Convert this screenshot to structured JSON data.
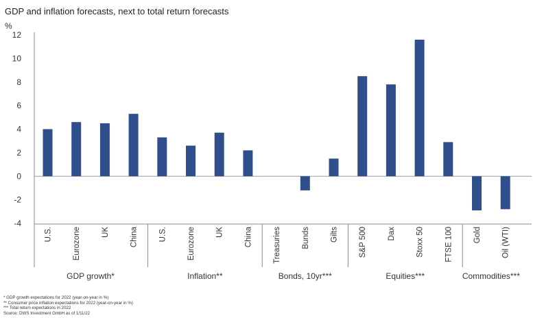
{
  "title": "GDP and inflation forecasts, next to total return forecasts",
  "unit_label": "%",
  "chart_data": {
    "type": "bar",
    "title": "GDP and inflation forecasts, next to total return forecasts",
    "ylabel": "%",
    "ylim": [
      -4,
      12
    ],
    "yticks": [
      "12",
      "10",
      "8",
      "6",
      "4",
      "2",
      "0",
      "-2",
      "-4"
    ],
    "grid": false,
    "bar_color": "#2e4f8c",
    "groups": [
      {
        "name": "GDP growth*",
        "categories": [
          "U.S.",
          "Eurozone",
          "UK",
          "China"
        ],
        "values": [
          4.0,
          4.6,
          4.5,
          5.3
        ]
      },
      {
        "name": "Inflation**",
        "categories": [
          "U.S.",
          "Eurozone",
          "UK",
          "China"
        ],
        "values": [
          3.3,
          2.6,
          3.7,
          2.2
        ]
      },
      {
        "name": "Bonds, 10yr***",
        "categories": [
          "Treasuries",
          "Bunds",
          "Gilts"
        ],
        "values": [
          0.0,
          -1.2,
          1.5
        ]
      },
      {
        "name": "Equities***",
        "categories": [
          "S&P 500",
          "Dax",
          "Stoxx 50",
          "FTSE 100"
        ],
        "values": [
          8.5,
          7.8,
          11.6,
          2.9
        ]
      },
      {
        "name": "Commodities***",
        "categories": [
          "Gold",
          "Oil (WTI)"
        ],
        "values": [
          -2.9,
          -2.8
        ]
      }
    ]
  },
  "footnotes": [
    "* GDP growth expectations for 2022 (year-on-year in %)",
    "** Consumer price inflation expectations for 2022 (year-on-year in %)",
    "*** Total return expectations in 2022",
    "Source: DWS Investment GmbH as of 1/11/22"
  ]
}
